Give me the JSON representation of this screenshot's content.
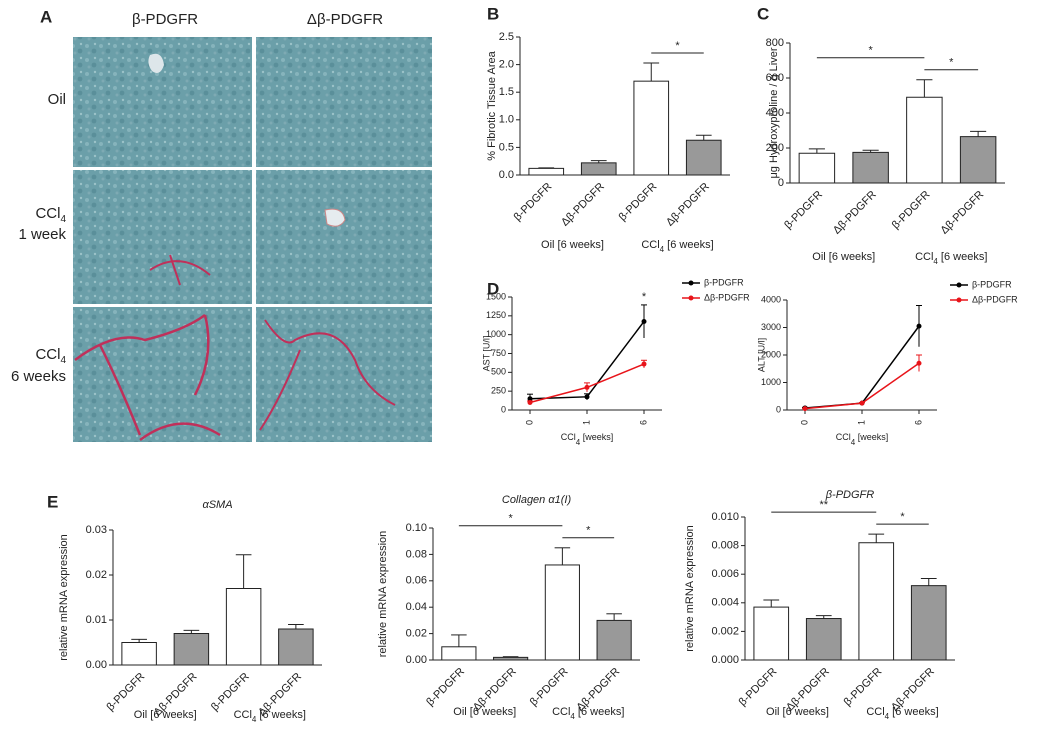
{
  "panel_a": {
    "letter": "A",
    "columns": [
      "β-PDGFR",
      "Δβ-PDGFR"
    ],
    "rows": [
      {
        "label": "Oil"
      },
      {
        "label": "CCl",
        "sub": "4",
        "line2": "1 week"
      },
      {
        "label": "CCl",
        "sub": "4",
        "line2": "6 weeks"
      }
    ]
  },
  "chart_data": [
    {
      "type": "bar",
      "letter": "B",
      "ylabel": "% Fibrotic Tissue Area",
      "categories": [
        "β-PDGFR",
        "Δβ-PDGFR",
        "β-PDGFR",
        "Δβ-PDGFR"
      ],
      "values": [
        0.12,
        0.22,
        1.7,
        0.63
      ],
      "errors": [
        0.01,
        0.04,
        0.33,
        0.09
      ],
      "colors": [
        "#ffffff",
        "#999999",
        "#ffffff",
        "#999999"
      ],
      "ylim": [
        0,
        2.5
      ],
      "yticks": [
        {
          "value": 0,
          "label": "0.0"
        },
        0.5,
        {
          "value": 1,
          "label": "1.0"
        },
        1.5,
        {
          "value": 2,
          "label": "2.0"
        },
        2.5
      ],
      "groups": [
        {
          "text": "Oil [6 weeks]"
        },
        {
          "text": "CCl",
          "sub": "4",
          "rest": " [6 weeks]"
        }
      ],
      "significance": [
        {
          "from": 2,
          "to": 3,
          "label": "*"
        }
      ]
    },
    {
      "type": "bar",
      "letter": "C",
      "ylabel": "μg Hydroxyproline / g Liver",
      "categories": [
        "β-PDGFR",
        "Δβ-PDGFR",
        "β-PDGFR",
        "Δβ-PDGFR"
      ],
      "values": [
        170,
        175,
        490,
        265
      ],
      "errors": [
        25,
        12,
        100,
        30
      ],
      "colors": [
        "#ffffff",
        "#999999",
        "#ffffff",
        "#999999"
      ],
      "ylim": [
        0,
        800
      ],
      "yticks": [
        0,
        200,
        400,
        600,
        800
      ],
      "groups": [
        {
          "text": "Oil [6 weeks]"
        },
        {
          "text": "CCl",
          "sub": "4",
          "rest": " [6 weeks]"
        }
      ],
      "significance": [
        {
          "from": 0,
          "to": 2,
          "label": "*"
        },
        {
          "from": 2,
          "to": 3,
          "label": "*"
        }
      ]
    },
    {
      "type": "line",
      "letter": "D",
      "ylabel": "AST [U/l]",
      "xlabel": {
        "text": "CCl",
        "sub": "4",
        "rest": " [weeks]"
      },
      "categories": [
        "0",
        "1",
        "6"
      ],
      "series": [
        {
          "name": "β-PDGFR",
          "color": "#000000",
          "values": [
            150,
            175,
            1175
          ],
          "errors": [
            60,
            40,
            220
          ]
        },
        {
          "name": "Δβ-PDGFR",
          "color": "#e8141a",
          "values": [
            100,
            300,
            610
          ],
          "errors": [
            20,
            60,
            50
          ]
        }
      ],
      "ylim": [
        0,
        1500
      ],
      "yticks": [
        0,
        250,
        500,
        750,
        1000,
        1250,
        1500
      ],
      "annotations": [
        {
          "index": 2,
          "text": "*"
        }
      ]
    },
    {
      "type": "line",
      "ylabel": "ALT [U/l]",
      "xlabel": {
        "text": "CCl",
        "sub": "4",
        "rest": " [weeks]"
      },
      "categories": [
        "0",
        "1",
        "6"
      ],
      "series": [
        {
          "name": "β-PDGFR",
          "color": "#000000",
          "values": [
            75,
            250,
            3050
          ],
          "errors": [
            20,
            20,
            750
          ]
        },
        {
          "name": "Δβ-PDGFR",
          "color": "#e8141a",
          "values": [
            50,
            250,
            1700
          ],
          "errors": [
            10,
            20,
            300
          ]
        }
      ],
      "ylim": [
        0,
        4000
      ],
      "yticks": [
        0,
        1000,
        2000,
        3000,
        4000
      ]
    },
    {
      "type": "bar",
      "letter": "E",
      "title": "αSMA",
      "ylabel": "relative mRNA expression",
      "categories": [
        "β-PDGFR",
        "Δβ-PDGFR",
        "β-PDGFR",
        "Δβ-PDGFR"
      ],
      "values": [
        0.005,
        0.007,
        0.017,
        0.008
      ],
      "errors": [
        0.0007,
        0.0007,
        0.0075,
        0.001
      ],
      "colors": [
        "#ffffff",
        "#999999",
        "#ffffff",
        "#999999"
      ],
      "ylim": [
        0,
        0.03
      ],
      "yticks": [
        {
          "value": 0,
          "label": "0.00"
        },
        0.01,
        0.02,
        0.03
      ],
      "groups": [
        {
          "text": "Oil [6 weeks]"
        },
        {
          "text": "CCl",
          "sub": "4",
          "rest": " [6 weeks]"
        }
      ]
    },
    {
      "type": "bar",
      "title": "Collagen α1(I)",
      "ylabel": "relative mRNA expression",
      "categories": [
        "β-PDGFR",
        "Δβ-PDGFR",
        "β-PDGFR",
        "Δβ-PDGFR"
      ],
      "values": [
        0.01,
        0.002,
        0.072,
        0.03
      ],
      "errors": [
        0.009,
        0.0005,
        0.013,
        0.005
      ],
      "colors": [
        "#ffffff",
        "#999999",
        "#ffffff",
        "#999999"
      ],
      "ylim": [
        0,
        0.1
      ],
      "yticks": [
        {
          "value": 0,
          "label": "0.00"
        },
        0.02,
        0.04,
        0.06,
        0.08,
        {
          "value": 0.1,
          "label": "0.10"
        }
      ],
      "groups": [
        {
          "text": "Oil [6 weeks]"
        },
        {
          "text": "CCl",
          "sub": "4",
          "rest": " [6 weeks]"
        }
      ],
      "significance": [
        {
          "from": 0,
          "to": 2,
          "label": "*"
        },
        {
          "from": 2,
          "to": 3,
          "label": "*"
        }
      ]
    },
    {
      "type": "bar",
      "title": "β-PDGFR",
      "ylabel": "relative mRNA expression",
      "categories": [
        "β-PDGFR",
        "Δβ-PDGFR",
        "β-PDGFR",
        "Δβ-PDGFR"
      ],
      "values": [
        0.0037,
        0.0029,
        0.0082,
        0.0052
      ],
      "errors": [
        0.0005,
        0.0002,
        0.0006,
        0.0005
      ],
      "colors": [
        "#ffffff",
        "#999999",
        "#ffffff",
        "#999999"
      ],
      "ylim": [
        0,
        0.01
      ],
      "yticks": [
        {
          "value": 0,
          "label": "0.000"
        },
        0.002,
        0.004,
        0.006,
        0.008,
        {
          "value": 0.01,
          "label": "0.010"
        }
      ],
      "groups": [
        {
          "text": "Oil [6 weeks]"
        },
        {
          "text": "CCl",
          "sub": "4",
          "rest": " [6 weeks]"
        }
      ],
      "significance": [
        {
          "from": 0,
          "to": 2,
          "label": "**"
        },
        {
          "from": 2,
          "to": 3,
          "label": "*"
        }
      ]
    }
  ]
}
